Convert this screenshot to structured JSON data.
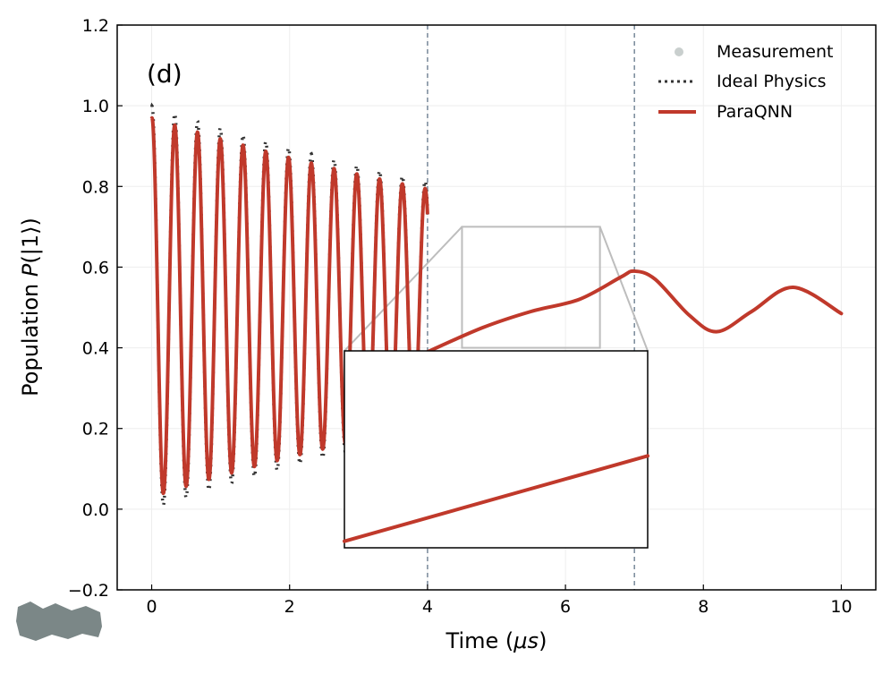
{
  "chart_data": {
    "type": "line",
    "panel_label": "(d)",
    "xlabel_prefix": "Time (",
    "xlabel_unit": "μs",
    "xlabel_suffix": ")",
    "ylabel_prefix": "Population ",
    "ylabel_symbol": "P",
    "ylabel_suffix": "(|1⟩)",
    "xlim": [
      -0.5,
      10.5
    ],
    "ylim": [
      -0.2,
      1.2
    ],
    "xticks": [
      0,
      2,
      4,
      6,
      8,
      10
    ],
    "xtick_labels": [
      "0",
      "2",
      "4",
      "6",
      "8",
      "10"
    ],
    "yticks": [
      -0.2,
      0.0,
      0.2,
      0.4,
      0.6,
      0.8,
      1.0,
      1.2
    ],
    "ytick_labels": [
      "−0.2",
      "0.0",
      "0.2",
      "0.4",
      "0.6",
      "0.8",
      "1.0",
      "1.2"
    ],
    "grid": true,
    "vlines": [
      4,
      7
    ],
    "legend": {
      "position": "top-right",
      "entries": [
        "Measurement",
        "Ideal Physics",
        "ParaQNN"
      ]
    },
    "series": [
      {
        "name": "ParaQNN",
        "color": "#c0392b",
        "segments": [
          {
            "model": "damped-cosine",
            "t_start": 0.0,
            "t_end": 4.0,
            "offset": 0.5,
            "amplitude0": 0.47,
            "decay_time": 8.5,
            "period": 0.33,
            "phase_time": 0.17
          },
          {
            "model": "points",
            "points": [
              [
                4.0,
                0.39
              ],
              [
                4.8,
                0.45
              ],
              [
                5.5,
                0.49
              ],
              [
                6.2,
                0.52
              ],
              [
                6.8,
                0.575
              ],
              [
                7.0,
                0.59
              ],
              [
                7.3,
                0.57
              ],
              [
                7.8,
                0.48
              ],
              [
                8.2,
                0.44
              ],
              [
                8.7,
                0.49
              ],
              [
                9.3,
                0.55
              ],
              [
                10.0,
                0.485
              ]
            ]
          }
        ]
      },
      {
        "name": "Ideal Physics",
        "color": "#333333",
        "model": "damped-cosine",
        "t_start": 0.0,
        "t_end": 4.0,
        "offset": 0.5,
        "amplitude0": 0.5,
        "decay_time": 8.5,
        "period": 0.33,
        "phase_time": 0.17
      }
    ],
    "inset": {
      "zoom_region": {
        "x": [
          4.5,
          6.5
        ],
        "y": [
          0.4,
          0.7
        ]
      },
      "series": [
        {
          "name": "ParaQNN",
          "points": [
            [
              4.5,
              0.41
            ],
            [
              6.5,
              0.54
            ]
          ]
        }
      ]
    }
  },
  "colors": {
    "paraqnn": "#c0392b",
    "ideal": "#333333",
    "measurement": "#c9cfce",
    "vline": "#778899",
    "zoom": "#bdbdbd",
    "grid": "#eeeeee"
  }
}
